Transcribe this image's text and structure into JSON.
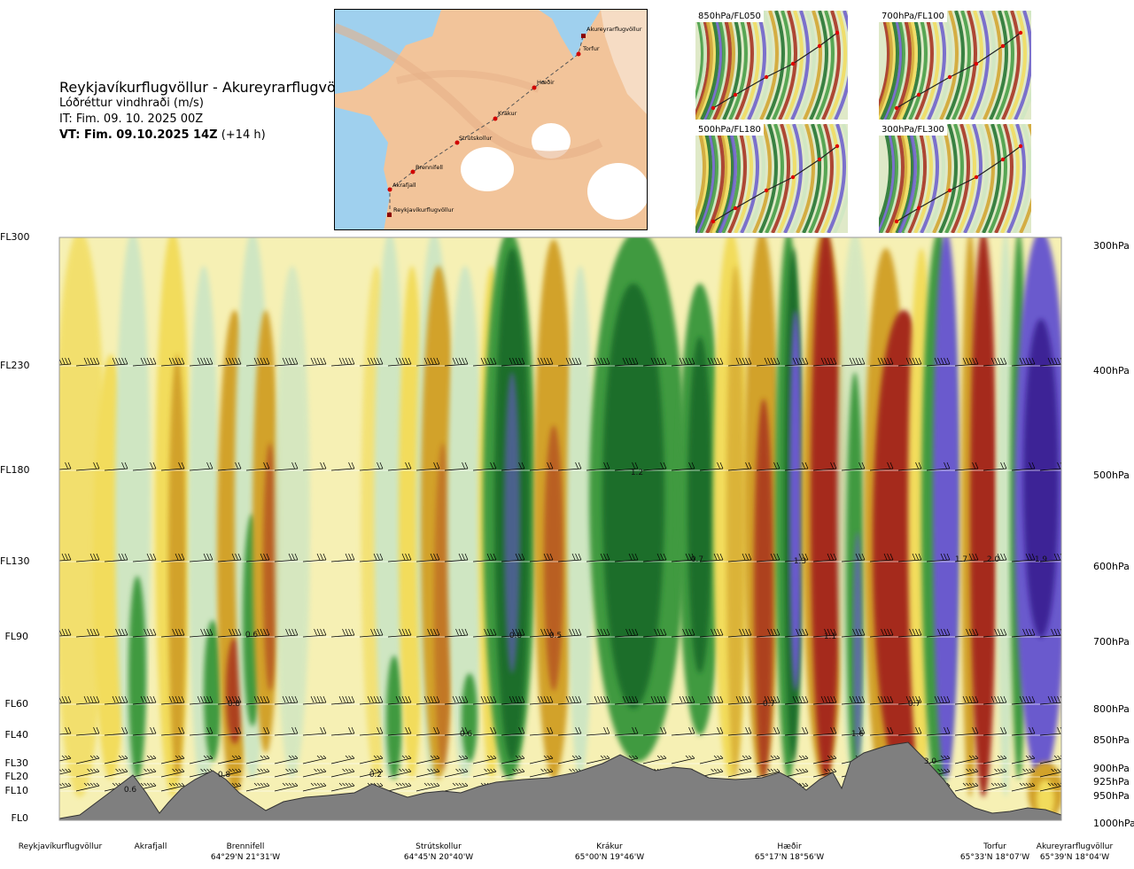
{
  "header": {
    "title": "Reykjavíkurflugvöllur - Akureyrarflugvöllur",
    "subtitle": "Lóðréttur vindhraði (m/s)",
    "it_line": "IT: Fim. 09. 10. 2025 00Z",
    "vt_bold": "VT: Fim. 09.10.2025 14Z",
    "vt_offset": "(+14 h)"
  },
  "route_map": {
    "stations": [
      "Akureyrarflugvöllur",
      "Torfur",
      "Hæðir",
      "Krákur",
      "Strútskollur",
      "Brennifell",
      "Akrafjall",
      "Reykjavíkurflugvöllur"
    ]
  },
  "thumbnails": [
    {
      "label": "850hPa/FL050"
    },
    {
      "label": "700hPa/FL100"
    },
    {
      "label": "500hPa/FL180"
    },
    {
      "label": "300hPa/FL300"
    }
  ],
  "colors": {
    "strong_down": "#a52a1a",
    "down": "#d2a22a",
    "weak_down": "#f2dc5c",
    "neutral": "#f6f0b4",
    "weak_up": "#cfe6c2",
    "up": "#3f9a3f",
    "strong_up": "#1c6e2a",
    "very_strong_up": "#6a5acd",
    "terrain": "#808080"
  },
  "chart_data": {
    "type": "heatmap",
    "title": "Lóðréttur vindhraði (m/s)",
    "y_left_ticks": [
      "FL300",
      "FL230",
      "FL180",
      "FL130",
      "FL90",
      "FL60",
      "FL40",
      "FL30",
      "FL20",
      "FL10",
      "FL0"
    ],
    "y_right_ticks": [
      "300hPa",
      "400hPa",
      "500hPa",
      "600hPa",
      "700hPa",
      "800hPa",
      "850hPa",
      "900hPa",
      "925hPa",
      "950hPa",
      "1000hPa"
    ],
    "locations": [
      {
        "name": "Reykjavíkurflugvöllur",
        "coord": ""
      },
      {
        "name": "Akrafjall",
        "coord": ""
      },
      {
        "name": "Brennifell",
        "coord": "64°29'N 21°31'W"
      },
      {
        "name": "Strútskollur",
        "coord": "64°45'N 20°40'W"
      },
      {
        "name": "Krákur",
        "coord": "65°00'N 19°46'W"
      },
      {
        "name": "Hæðir",
        "coord": "65°17'N 18°56'W"
      },
      {
        "name": "Torfur",
        "coord": "65°33'N 18°07'W"
      },
      {
        "name": "Akureyrarflugvöllur",
        "coord": "65°39'N 18°04'W"
      }
    ],
    "annotations": [
      "0.6",
      "0.8",
      "0.8",
      "0.6",
      "0.6",
      "0.6",
      "0.5",
      "0.7",
      "0.7",
      "1.3",
      "1.1",
      "0.7",
      "1.6",
      "1.7",
      "2.0",
      "1.9",
      "3.0",
      "1.2",
      "0.2"
    ]
  }
}
